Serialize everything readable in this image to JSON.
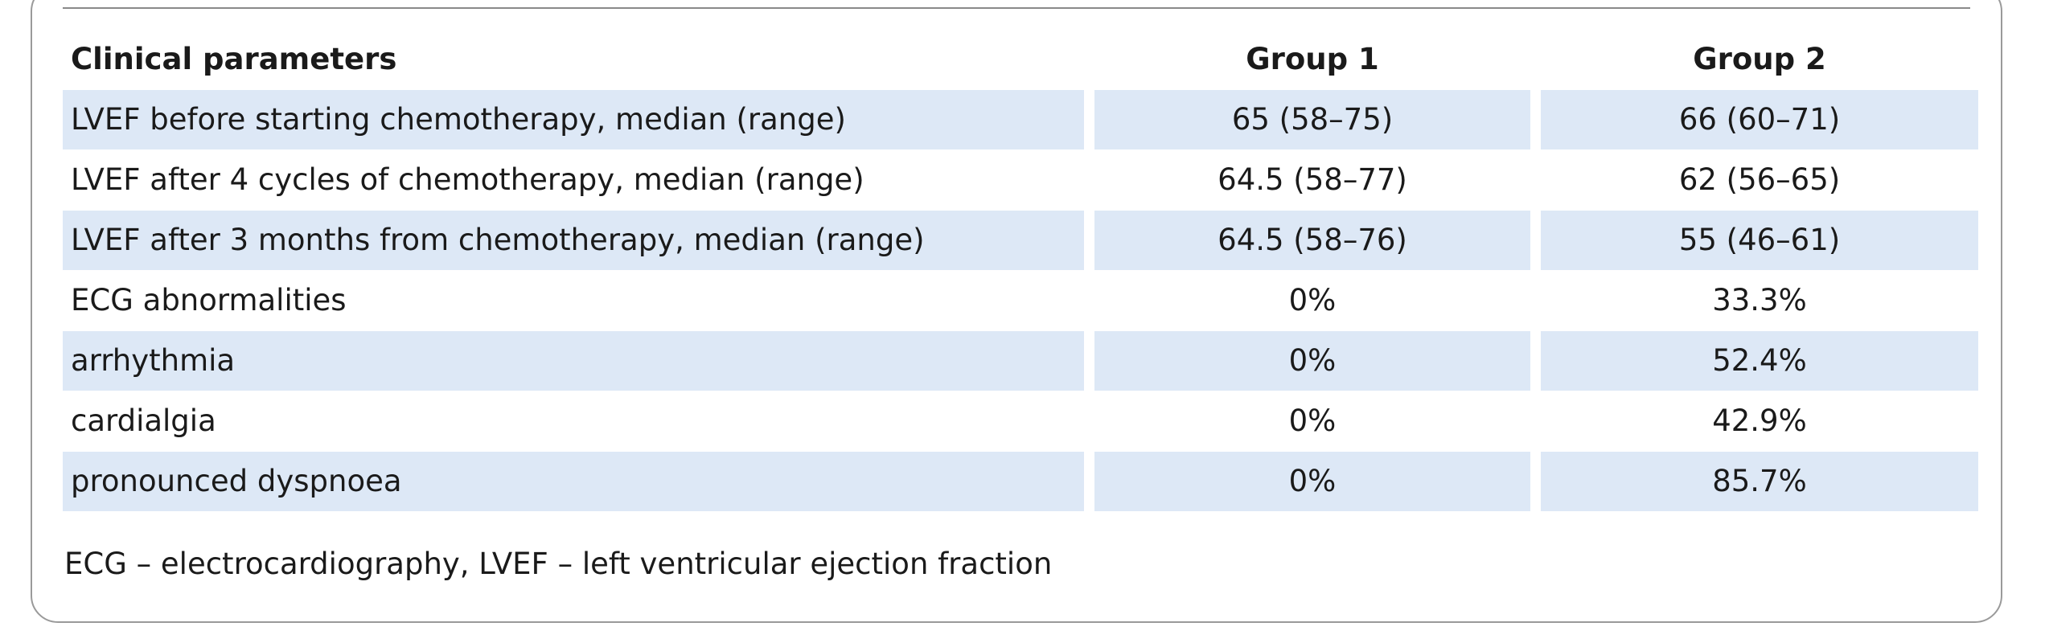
{
  "table": {
    "headers": [
      "Clinical parameters",
      "Group 1",
      "Group 2"
    ],
    "rows": [
      {
        "parameter": "LVEF before starting chemotherapy, median (range)",
        "group1": "65 (58–75)",
        "group2": "66 (60–71)"
      },
      {
        "parameter": "LVEF after 4 cycles of chemotherapy, median (range)",
        "group1": "64.5 (58–77)",
        "group2": "62 (56–65)"
      },
      {
        "parameter": "LVEF after 3 months from chemotherapy, median (range)",
        "group1": "64.5 (58–76)",
        "group2": "55 (46–61)"
      },
      {
        "parameter": "ECG abnormalities",
        "group1": "0%",
        "group2": "33.3%"
      },
      {
        "parameter": "arrhythmia",
        "group1": "0%",
        "group2": "52.4%"
      },
      {
        "parameter": "cardialgia",
        "group1": "0%",
        "group2": "42.9%"
      },
      {
        "parameter": "pronounced dyspnoea",
        "group1": "0%",
        "group2": "85.7%"
      }
    ]
  },
  "footnote": "ECG – electrocardiography, LVEF – left ventricular ejection fraction",
  "colors": {
    "row_shade": "#dde8f6",
    "frame_border": "#9a9a9a",
    "text": "#1a1a1a"
  }
}
